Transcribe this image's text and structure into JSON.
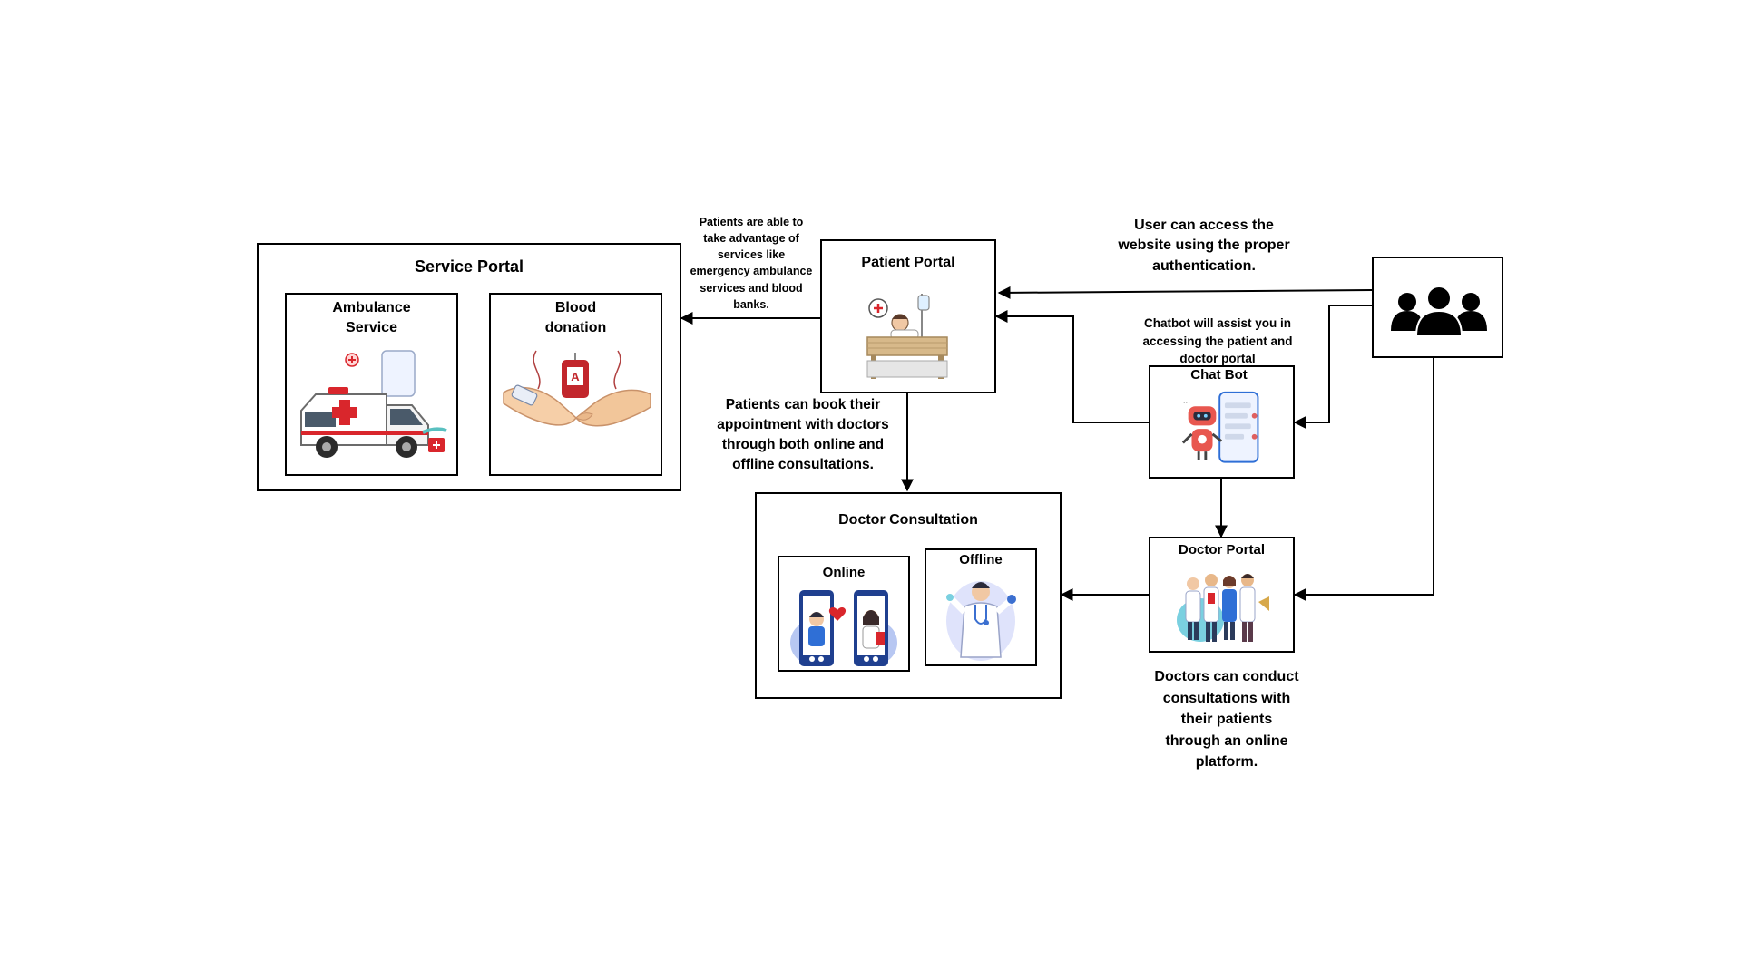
{
  "service_portal": {
    "title": "Service Portal",
    "ambulance": {
      "label_line1": "Ambulance",
      "label_line2": "Service",
      "illustration": "ambulance-icon"
    },
    "blood": {
      "label_line1": "Blood",
      "label_line2": "donation",
      "bag_letter": "A",
      "illustration": "blood-bag-icon"
    }
  },
  "patient_portal": {
    "title": "Patient Portal",
    "illustration": "patient-bed-icon"
  },
  "doctor_consultation": {
    "title": "Doctor Consultation",
    "online": {
      "label": "Online",
      "illustration": "video-call-icon"
    },
    "offline": {
      "label": "Offline",
      "illustration": "doctor-icon"
    }
  },
  "chat_bot": {
    "title": "Chat Bot",
    "illustration": "robot-phone-icon"
  },
  "doctor_portal": {
    "title": "Doctor Portal",
    "illustration": "doctors-group-icon"
  },
  "users": {
    "illustration": "user-group-icon"
  },
  "notes": {
    "services": [
      "Patients are able to",
      "take advantage of",
      "services like",
      "emergency ambulance",
      "services and blood",
      "banks."
    ],
    "booking": [
      "Patients can book their",
      "appointment with doctors",
      "through both online and",
      "offline consultations."
    ],
    "access": [
      "User can access the",
      "website using the proper",
      "authentication."
    ],
    "chatbot": [
      "Chatbot will assist you in",
      "accessing the patient and",
      "doctor portal"
    ],
    "doctors": [
      "Doctors can conduct",
      "consultations with",
      "their patients",
      "through an online",
      "platform."
    ]
  },
  "colors": {
    "accent_red": "#d9262c",
    "accent_blue": "#2f6fd6",
    "light_blue": "#b7c7f2",
    "wood": "#d7b98a"
  }
}
